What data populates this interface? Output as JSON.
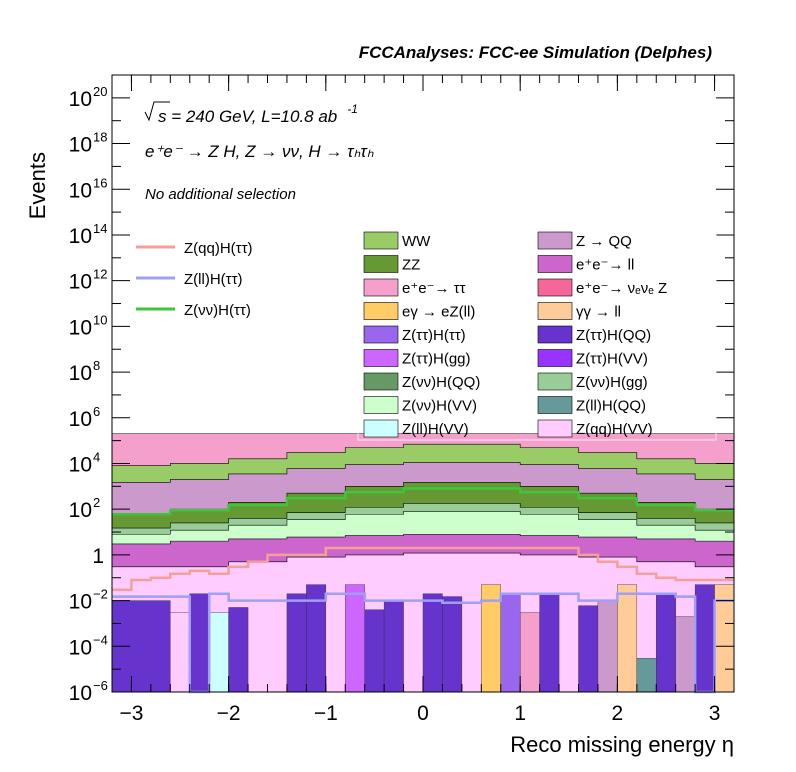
{
  "chart_data": {
    "type": "histogram",
    "title": "FCCAnalyses: FCC-ee Simulation (Delphes)",
    "ylabel": "Events",
    "xlabel": "Reco missing energy η",
    "yscale": "log",
    "xlim": [
      -3.2,
      3.2
    ],
    "ylim": [
      1e-06,
      1e+21
    ],
    "x_ticks": [
      "−3",
      "−2",
      "−1",
      "0",
      "1",
      "2",
      "3"
    ],
    "y_ticks": [
      {
        "base": "10",
        "exp": "20"
      },
      {
        "base": "10",
        "exp": "18"
      },
      {
        "base": "10",
        "exp": "16"
      },
      {
        "base": "10",
        "exp": "14"
      },
      {
        "base": "10",
        "exp": "12"
      },
      {
        "base": "10",
        "exp": "10"
      },
      {
        "base": "10",
        "exp": "8"
      },
      {
        "base": "10",
        "exp": "6"
      },
      {
        "base": "10",
        "exp": "4"
      },
      {
        "base": "10",
        "exp": "2"
      },
      {
        "base": "1",
        "exp": ""
      },
      {
        "base": "10",
        "exp": "−2"
      },
      {
        "base": "10",
        "exp": "−4"
      },
      {
        "base": "10",
        "exp": "−6"
      }
    ],
    "annotations": {
      "energy": {
        "pre": "s = 240 GeV, L=10.8 ab",
        "sup": "-1"
      },
      "process": "e⁺e⁻ → Z H, Z → νν, H → τₕτₕ",
      "selection": "No additional selection"
    },
    "signal_legend": [
      {
        "label": "Z(qq)H(ττ)",
        "color": "#f4a09a"
      },
      {
        "label": "Z(ll)H(ττ)",
        "color": "#9f9ff5"
      },
      {
        "label": "Z(νν)H(ττ)",
        "color": "#3fc43a"
      }
    ],
    "background_legend": [
      {
        "label": "WW",
        "color": "#99cc66"
      },
      {
        "label": "Z → QQ",
        "color": "#cc99cc"
      },
      {
        "label": "ZZ",
        "color": "#669933"
      },
      {
        "label": "e⁺e⁻→ ll",
        "color": "#cc66cc"
      },
      {
        "label": "e⁺e⁻→ ττ",
        "color": "#f59fcc"
      },
      {
        "label": "e⁺e⁻→ νₑνₑ Z",
        "color": "#f56699"
      },
      {
        "label": "eγ → eZ(ll)",
        "color": "#ffcc66"
      },
      {
        "label": "γγ → ll",
        "color": "#ffcc99"
      },
      {
        "label": "Z(ττ)H(ττ)",
        "color": "#9966ee"
      },
      {
        "label": "Z(ττ)H(QQ)",
        "color": "#6633cc"
      },
      {
        "label": "Z(ττ)H(gg)",
        "color": "#cc66ff"
      },
      {
        "label": "Z(ττ)H(VV)",
        "color": "#9933ff"
      },
      {
        "label": "Z(νν)H(QQ)",
        "color": "#669966"
      },
      {
        "label": "Z(νν)H(gg)",
        "color": "#99cc99"
      },
      {
        "label": "Z(νν)H(VV)",
        "color": "#ccffcc"
      },
      {
        "label": "Z(ll)H(QQ)",
        "color": "#669999"
      },
      {
        "label": "Z(ll)H(VV)",
        "color": "#ccffff"
      },
      {
        "label": "Z(qq)H(VV)",
        "color": "#ffccff"
      }
    ],
    "stack_bands": [
      {
        "name": "ee→ττ (top band)",
        "color": "#f59fcc",
        "x": [
          -3.2,
          -2.6,
          -2.0,
          -1.4,
          -0.8,
          -0.2,
          0.4,
          1.0,
          1.6,
          2.2,
          2.8,
          3.2
        ],
        "y": [
          200000,
          200000,
          200000,
          200000,
          200000,
          200000,
          200000,
          200000,
          200000,
          200000,
          200000,
          200000
        ]
      },
      {
        "name": "WW",
        "color": "#99cc66",
        "x": [
          -3.2,
          -2.6,
          -2.0,
          -1.4,
          -0.8,
          -0.2,
          0.4,
          1.0,
          1.6,
          2.2,
          2.8,
          3.2
        ],
        "y": [
          8000,
          10000,
          16000,
          30000,
          50000,
          70000,
          70000,
          50000,
          30000,
          16000,
          10000,
          8000
        ]
      },
      {
        "name": "Z→QQ",
        "color": "#cc99cc",
        "x": [
          -3.2,
          -2.6,
          -2.0,
          -1.4,
          -0.8,
          -0.2,
          0.4,
          1.0,
          1.6,
          2.2,
          2.8,
          3.2
        ],
        "y": [
          1500,
          2000,
          3500,
          6000,
          9000,
          11000,
          11000,
          9000,
          6000,
          3500,
          2000,
          1500
        ]
      },
      {
        "name": "ZZ",
        "color": "#669933",
        "x": [
          -3.2,
          -2.6,
          -2.0,
          -1.4,
          -0.8,
          -0.2,
          0.4,
          1.0,
          1.6,
          2.2,
          2.8,
          3.2
        ],
        "y": [
          60,
          100,
          200,
          500,
          1000,
          1500,
          1500,
          1000,
          500,
          200,
          100,
          60
        ]
      },
      {
        "name": "Z(νν)H(gg)",
        "color": "#99cc99",
        "x": [
          -3.2,
          -2.6,
          -2.0,
          -1.4,
          -0.8,
          -0.2,
          0.4,
          1.0,
          1.6,
          2.2,
          2.8,
          3.2
        ],
        "y": [
          15,
          25,
          40,
          70,
          120,
          180,
          180,
          120,
          70,
          40,
          25,
          15
        ]
      },
      {
        "name": "Z(νν)H(VV)",
        "color": "#ccffcc",
        "x": [
          -3.2,
          -2.6,
          -2.0,
          -1.4,
          -0.8,
          -0.2,
          0.4,
          1.0,
          1.6,
          2.2,
          2.8,
          3.2
        ],
        "y": [
          8,
          12,
          20,
          35,
          60,
          80,
          80,
          60,
          35,
          20,
          12,
          8
        ]
      },
      {
        "name": "ee→ll",
        "color": "#cc66cc",
        "x": [
          -3.2,
          -2.6,
          -2.0,
          -1.4,
          -0.8,
          -0.2,
          0.4,
          1.0,
          1.6,
          2.2,
          2.8,
          3.2
        ],
        "y": [
          3,
          4,
          5,
          6,
          7,
          8,
          8,
          7,
          6,
          5,
          4,
          3
        ]
      },
      {
        "name": "Z(qq)H(VV)",
        "color": "#ffccff",
        "x": [
          -3.2,
          -2.6,
          -2.0,
          -1.4,
          -0.8,
          -0.2,
          0.4,
          1.0,
          1.6,
          2.2,
          2.8,
          3.2
        ],
        "y": [
          0.3,
          0.3,
          0.5,
          0.8,
          1,
          1.2,
          1.2,
          1,
          0.8,
          0.5,
          0.3,
          0.3
        ]
      }
    ],
    "foreground_bars": [
      {
        "x0": -3.2,
        "x1": -2.6,
        "y": 0.01,
        "color": "#6633cc"
      },
      {
        "x0": -2.6,
        "x1": -2.4,
        "y": 0.003,
        "color": "#ffccff"
      },
      {
        "x0": -2.4,
        "x1": -2.2,
        "y": 0.02,
        "color": "#6633cc"
      },
      {
        "x0": -2.2,
        "x1": -2.0,
        "y": 0.003,
        "color": "#ccffff"
      },
      {
        "x0": -2.0,
        "x1": -1.8,
        "y": 0.005,
        "color": "#6633cc"
      },
      {
        "x0": -1.4,
        "x1": -1.2,
        "y": 0.02,
        "color": "#6633cc"
      },
      {
        "x0": -1.2,
        "x1": -1.0,
        "y": 0.05,
        "color": "#6633cc"
      },
      {
        "x0": -0.8,
        "x1": -0.6,
        "y": 0.05,
        "color": "#cc66ff"
      },
      {
        "x0": -0.6,
        "x1": -0.4,
        "y": 0.004,
        "color": "#6633cc"
      },
      {
        "x0": -0.4,
        "x1": -0.2,
        "y": 0.01,
        "color": "#6633cc"
      },
      {
        "x0": 0.0,
        "x1": 0.2,
        "y": 0.02,
        "color": "#6633cc"
      },
      {
        "x0": 0.2,
        "x1": 0.4,
        "y": 0.015,
        "color": "#6633cc"
      },
      {
        "x0": 0.6,
        "x1": 0.8,
        "y": 0.05,
        "color": "#ffcc66"
      },
      {
        "x0": 0.8,
        "x1": 1.0,
        "y": 0.02,
        "color": "#9966ee"
      },
      {
        "x0": 1.0,
        "x1": 1.2,
        "y": 0.003,
        "color": "#f59fcc"
      },
      {
        "x0": 1.2,
        "x1": 1.4,
        "y": 0.02,
        "color": "#6633cc"
      },
      {
        "x0": 1.6,
        "x1": 1.8,
        "y": 0.006,
        "color": "#6633cc"
      },
      {
        "x0": 1.8,
        "x1": 2.0,
        "y": 0.01,
        "color": "#cc99cc"
      },
      {
        "x0": 2.0,
        "x1": 2.2,
        "y": 0.05,
        "color": "#ffcc99"
      },
      {
        "x0": 2.2,
        "x1": 2.4,
        "y": 3e-05,
        "color": "#669999"
      },
      {
        "x0": 2.4,
        "x1": 2.6,
        "y": 0.02,
        "color": "#6633cc"
      },
      {
        "x0": 2.6,
        "x1": 2.8,
        "y": 0.002,
        "color": "#cc99cc"
      },
      {
        "x0": 2.8,
        "x1": 3.0,
        "y": 0.05,
        "color": "#6633cc"
      },
      {
        "x0": 3.0,
        "x1": 3.2,
        "y": 0.05,
        "color": "#ffcc99"
      }
    ],
    "signal_lines": [
      {
        "name": "Z(νν)H(ττ)",
        "color": "#3fc43a",
        "x": [
          -3.2,
          -2.6,
          -2.0,
          -1.4,
          -0.8,
          -0.2,
          0.4,
          1.0,
          1.6,
          2.2,
          2.8,
          3.2
        ],
        "y": [
          60,
          90,
          150,
          300,
          550,
          800,
          800,
          550,
          300,
          150,
          90,
          60
        ]
      },
      {
        "name": "Z(qq)H(ττ)",
        "color": "#f4a09a",
        "x": [
          -3.2,
          -3.0,
          -2.8,
          -2.6,
          -2.4,
          -2.2,
          -2.0,
          -1.8,
          -1.6,
          -1.0,
          1.0,
          1.6,
          1.8,
          2.0,
          2.2,
          2.4,
          2.6,
          3.2
        ],
        "y": [
          0.03,
          0.08,
          0.1,
          0.15,
          0.2,
          0.15,
          0.3,
          0.5,
          1,
          2,
          2,
          1,
          0.5,
          0.3,
          0.15,
          0.1,
          0.08,
          0.03
        ]
      },
      {
        "name": "Z(ll)H(ττ)",
        "color": "#9f9ff5",
        "x": [
          -3.2,
          -2.6,
          -2.4,
          -2.2,
          -2.0,
          -1.4,
          -1.0,
          -0.6,
          0.0,
          0.2,
          0.4,
          0.6,
          0.8,
          1.0,
          1.6,
          2.0,
          2.4,
          2.6,
          2.8,
          3.0,
          3.2
        ],
        "y": [
          0.015,
          0.015,
          1e-06,
          0.02,
          0.01,
          0.01,
          0.02,
          0.01,
          0.01,
          0.008,
          0.008,
          0.01,
          0.02,
          0.02,
          0.01,
          0.02,
          0.02,
          0.015,
          1e-06,
          0.01,
          0.01
        ]
      }
    ]
  }
}
